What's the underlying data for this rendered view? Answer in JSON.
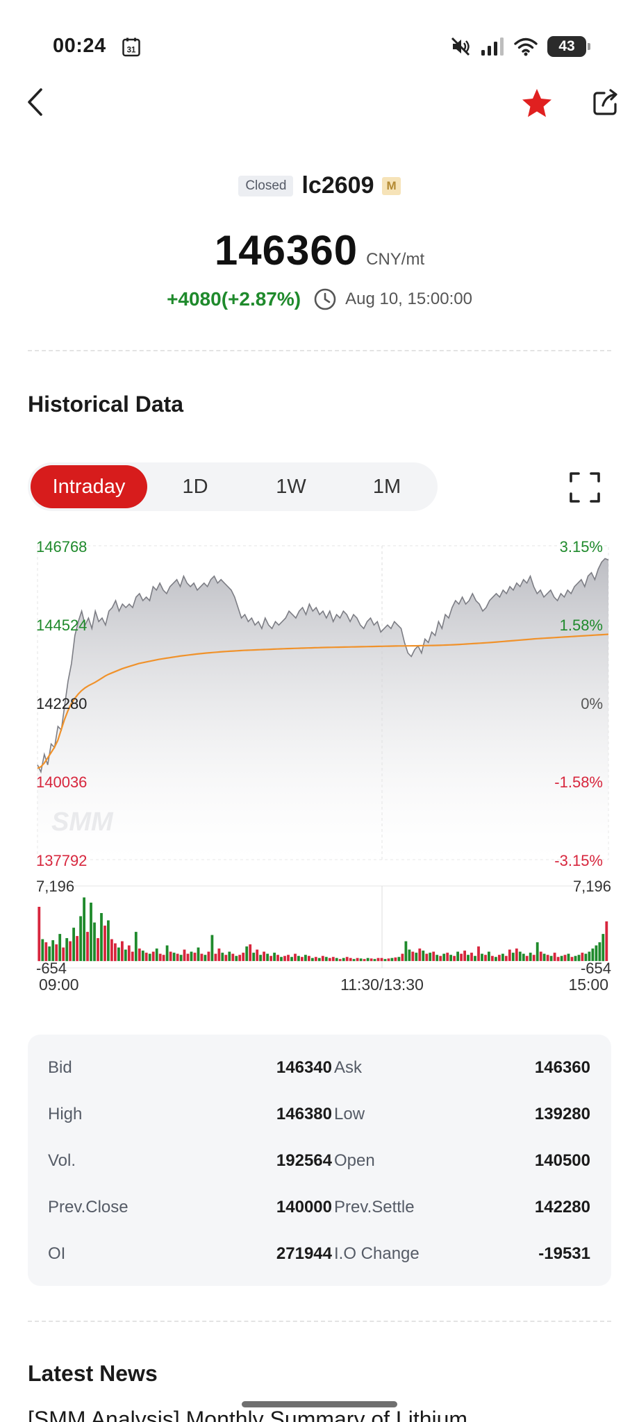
{
  "status_bar": {
    "time": "00:24",
    "calendar_day": "31",
    "battery": "43"
  },
  "header": {
    "status_badge": "Closed",
    "symbol": "lc2609",
    "market_badge": "M",
    "price": "146360",
    "unit": "CNY/mt",
    "change": "+4080(+2.87%)",
    "timestamp": "Aug 10, 15:00:00"
  },
  "colors": {
    "accent_red": "#d71c1c",
    "up_green": "#1f8a2c",
    "down_red": "#d7263d",
    "avg_line": "#f0922b",
    "star": "#e02020"
  },
  "section": {
    "historical_title": "Historical Data",
    "news_title": "Latest News",
    "news_peek": "[SMM Analysis] Monthly Summary of Lithium"
  },
  "tabs": [
    {
      "label": "Intraday",
      "active": true
    },
    {
      "label": "1D",
      "active": false
    },
    {
      "label": "1W",
      "active": false
    },
    {
      "label": "1M",
      "active": false
    }
  ],
  "chart_data": {
    "type": "line",
    "watermark": "SMM",
    "price_axis": {
      "ticks": [
        "146768",
        "144524",
        "142280",
        "140036",
        "137792"
      ],
      "ylim": [
        137792,
        146768
      ],
      "reference": 142280
    },
    "percent_axis": {
      "ticks": [
        "3.15%",
        "1.58%",
        "0%",
        "-1.58%",
        "-3.15%"
      ]
    },
    "x_ticks": [
      "09:00",
      "11:30/13:30",
      "15:00"
    ],
    "series": [
      {
        "kind": "price",
        "values": [
          140500,
          140300,
          140800,
          140500,
          141100,
          141000,
          141600,
          141500,
          142200,
          142900,
          143400,
          144200,
          144600,
          144900,
          144500,
          144700,
          144400,
          144900,
          144600,
          144700,
          144500,
          144900,
          145000,
          145200,
          144900,
          145100,
          145000,
          145100,
          145000,
          145300,
          145400,
          145200,
          145300,
          145200,
          145600,
          145500,
          145700,
          145500,
          145400,
          145600,
          145700,
          145800,
          145600,
          145900,
          145700,
          145600,
          145700,
          145500,
          145600,
          145700,
          145600,
          145800,
          145900,
          145700,
          145800,
          145700,
          145600,
          145500,
          145300,
          145000,
          144700,
          144800,
          144600,
          144700,
          144500,
          144600,
          144400,
          144700,
          144500,
          144400,
          144600,
          144500,
          144600,
          144700,
          144900,
          144800,
          144700,
          144900,
          145000,
          144800,
          145100,
          144900,
          145000,
          144800,
          144900,
          144700,
          144900,
          144600,
          144800,
          144700,
          144900,
          144800,
          144600,
          144800,
          144700,
          144500,
          144400,
          144600,
          144700,
          144500,
          144600,
          144300,
          144400,
          144500,
          144400,
          144600,
          144500,
          144400,
          144000,
          143700,
          143600,
          143800,
          143900,
          143700,
          144100,
          144000,
          144300,
          144200,
          144600,
          144400,
          144800,
          144700,
          145000,
          145200,
          145100,
          145300,
          145100,
          145200,
          145400,
          145200,
          145100,
          144900,
          145000,
          145200,
          145300,
          145400,
          145300,
          145500,
          145400,
          145600,
          145500,
          145700,
          145600,
          145800,
          145700,
          145900,
          145600,
          145400,
          145500,
          145300,
          145400,
          145500,
          145300,
          145200,
          145400,
          145300,
          145500,
          145400,
          145600,
          145700,
          145800,
          145600,
          145900,
          146000,
          145800,
          146100,
          146300,
          146400,
          146360
        ]
      },
      {
        "kind": "average",
        "values": [
          140400,
          140450,
          140550,
          140700,
          140850,
          141000,
          141200,
          141500,
          141800,
          142050,
          142250,
          142400,
          142520,
          142620,
          142700,
          142760,
          142810,
          142860,
          142920,
          142980,
          143040,
          143090,
          143130,
          143170,
          143210,
          143250,
          143280,
          143310,
          143340,
          143370,
          143400,
          143420,
          143440,
          143460,
          143480,
          143500,
          143520,
          143535,
          143550,
          143565,
          143580,
          143595,
          143610,
          143622,
          143634,
          143646,
          143658,
          143670,
          143680,
          143690,
          143700,
          143708,
          143716,
          143724,
          143732,
          143740,
          143746,
          143752,
          143758,
          143764,
          143770,
          143775,
          143780,
          143784,
          143788,
          143792,
          143796,
          143800,
          143804,
          143808,
          143812,
          143816,
          143820,
          143823,
          143826,
          143829,
          143832,
          143835,
          143838,
          143841,
          143844,
          143847,
          143850,
          143853,
          143856,
          143858,
          143860,
          143862,
          143864,
          143866,
          143868,
          143870,
          143872,
          143874,
          143876,
          143878,
          143880,
          143882,
          143884,
          143886,
          143888,
          143890,
          143892,
          143894,
          143896,
          143898,
          143900,
          143902,
          143903,
          143904,
          143905,
          143906,
          143907,
          143908,
          143910,
          143912,
          143914,
          143916,
          143918,
          143920,
          143924,
          143928,
          143932,
          143936,
          143940,
          143946,
          143952,
          143958,
          143964,
          143970,
          143976,
          143982,
          143988,
          143994,
          144000,
          144008,
          144016,
          144024,
          144032,
          144040,
          144048,
          144056,
          144064,
          144072,
          144080,
          144088,
          144096,
          144104,
          144110,
          144116,
          144122,
          144128,
          144134,
          144140,
          144146,
          144152,
          144158,
          144164,
          144170,
          144176,
          144182,
          144188,
          144194,
          144200,
          144206,
          144212,
          144218,
          144224,
          144230,
          144236
        ]
      }
    ],
    "volume": {
      "max_label": "7,196",
      "min_label": "-654",
      "ylim": [
        -654,
        7196
      ],
      "values": [
        5200,
        2100,
        1800,
        1400,
        2000,
        1600,
        2600,
        1300,
        2200,
        1900,
        3200,
        2400,
        4300,
        6100,
        2800,
        5600,
        3700,
        2200,
        4600,
        3400,
        3900,
        2100,
        1700,
        1300,
        1900,
        1100,
        1500,
        900,
        2800,
        1200,
        1000,
        800,
        700,
        900,
        1200,
        700,
        600,
        1500,
        900,
        800,
        700,
        600,
        1100,
        700,
        900,
        800,
        1300,
        700,
        600,
        900,
        2500,
        700,
        1200,
        800,
        600,
        900,
        700,
        500,
        600,
        800,
        1400,
        1600,
        800,
        1100,
        600,
        900,
        700,
        500,
        800,
        600,
        400,
        500,
        600,
        400,
        700,
        500,
        400,
        600,
        500,
        300,
        400,
        300,
        500,
        400,
        300,
        400,
        300,
        200,
        300,
        400,
        300,
        200,
        300,
        250,
        200,
        300,
        250,
        200,
        300,
        300,
        200,
        250,
        300,
        350,
        400,
        700,
        1900,
        1100,
        900,
        800,
        1200,
        1000,
        700,
        800,
        900,
        600,
        500,
        700,
        800,
        600,
        500,
        900,
        700,
        1000,
        600,
        800,
        500,
        1400,
        700,
        600,
        900,
        500,
        400,
        600,
        700,
        500,
        1100,
        800,
        1200,
        900,
        700,
        500,
        800,
        600,
        1800,
        900,
        700,
        600,
        500,
        800,
        400,
        500,
        600,
        700,
        400,
        500,
        600,
        800,
        700,
        900,
        1200,
        1500,
        1800,
        2600,
        3800
      ],
      "up_flags": [
        0,
        1,
        0,
        1,
        1,
        0,
        1,
        0,
        1,
        0,
        1,
        0,
        1,
        1,
        0,
        1,
        1,
        0,
        1,
        0,
        1,
        0,
        0,
        1,
        0,
        1,
        0,
        0,
        1,
        0,
        1,
        0,
        1,
        0,
        1,
        0,
        0,
        1,
        0,
        1,
        0,
        1,
        0,
        0,
        1,
        0,
        1,
        0,
        1,
        0,
        1,
        0,
        0,
        1,
        0,
        1,
        0,
        1,
        0,
        0,
        1,
        0,
        1,
        0,
        1,
        0,
        1,
        0,
        1,
        0,
        1,
        0,
        0,
        1,
        0,
        1,
        0,
        1,
        0,
        1,
        0,
        1,
        0,
        1,
        0,
        0,
        1,
        0,
        1,
        0,
        0,
        1,
        0,
        1,
        0,
        1,
        0,
        1,
        0,
        0,
        1,
        0,
        1,
        0,
        1,
        0,
        1,
        1,
        0,
        1,
        0,
        1,
        0,
        1,
        0,
        1,
        0,
        1,
        0,
        1,
        0,
        1,
        0,
        0,
        1,
        0,
        1,
        0,
        1,
        0,
        1,
        0,
        1,
        0,
        1,
        0,
        0,
        1,
        0,
        1,
        1,
        0,
        1,
        0,
        1,
        0,
        1,
        0,
        1,
        0,
        0,
        1,
        0,
        1,
        0,
        1,
        1,
        0,
        1,
        1,
        1,
        1,
        1,
        1
      ]
    }
  },
  "quote": [
    {
      "label": "Bid",
      "value": "146340",
      "label2": "Ask",
      "value2": "146360"
    },
    {
      "label": "High",
      "value": "146380",
      "label2": "Low",
      "value2": "139280"
    },
    {
      "label": "Vol.",
      "value": "192564",
      "label2": "Open",
      "value2": "140500"
    },
    {
      "label": "Prev.Close",
      "value": "140000",
      "label2": "Prev.Settle",
      "value2": "142280"
    },
    {
      "label": "OI",
      "value": "271944",
      "label2": "I.O Change",
      "value2": "-19531"
    }
  ]
}
